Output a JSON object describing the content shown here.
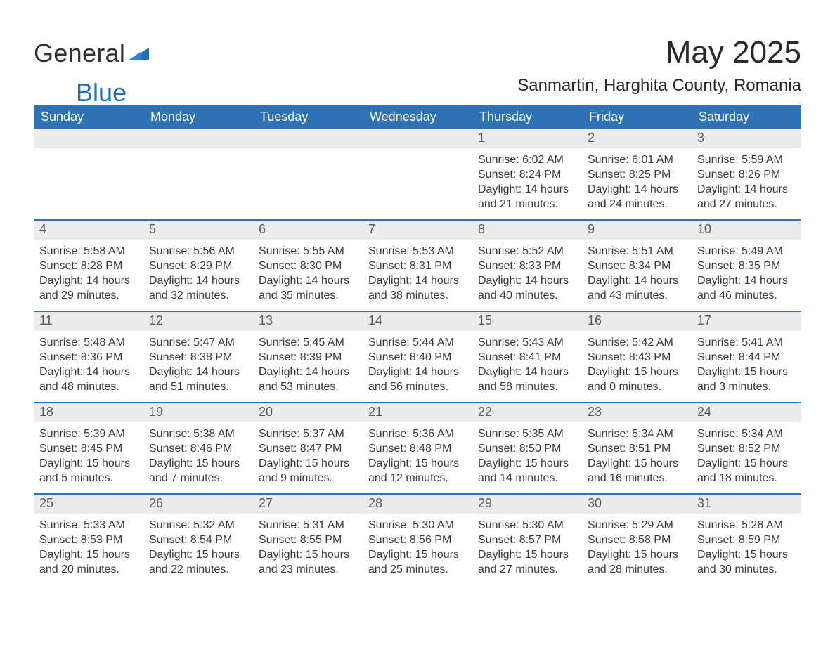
{
  "logo": {
    "word1": "General",
    "word2": "Blue",
    "accent_color": "#2470b8"
  },
  "title": "May 2025",
  "location": "Sanmartin, Harghita County, Romania",
  "colors": {
    "header_bg": "#2f73b5",
    "header_text": "#ffffff",
    "daynum_bg": "#ececec",
    "daynum_text": "#595959",
    "body_text": "#3a3a3a",
    "week_border": "#2f73b5",
    "page_bg": "#ffffff"
  },
  "typography": {
    "title_fontsize": 44,
    "location_fontsize": 24,
    "dayheader_fontsize": 18,
    "daynum_fontsize": 18,
    "detail_fontsize": 16,
    "font_family": "Arial"
  },
  "day_headers": [
    "Sunday",
    "Monday",
    "Tuesday",
    "Wednesday",
    "Thursday",
    "Friday",
    "Saturday"
  ],
  "weeks": [
    [
      {
        "blank": true
      },
      {
        "blank": true
      },
      {
        "blank": true
      },
      {
        "blank": true
      },
      {
        "num": "1",
        "sunrise": "Sunrise: 6:02 AM",
        "sunset": "Sunset: 8:24 PM",
        "daylight": "Daylight: 14 hours and 21 minutes."
      },
      {
        "num": "2",
        "sunrise": "Sunrise: 6:01 AM",
        "sunset": "Sunset: 8:25 PM",
        "daylight": "Daylight: 14 hours and 24 minutes."
      },
      {
        "num": "3",
        "sunrise": "Sunrise: 5:59 AM",
        "sunset": "Sunset: 8:26 PM",
        "daylight": "Daylight: 14 hours and 27 minutes."
      }
    ],
    [
      {
        "num": "4",
        "sunrise": "Sunrise: 5:58 AM",
        "sunset": "Sunset: 8:28 PM",
        "daylight": "Daylight: 14 hours and 29 minutes."
      },
      {
        "num": "5",
        "sunrise": "Sunrise: 5:56 AM",
        "sunset": "Sunset: 8:29 PM",
        "daylight": "Daylight: 14 hours and 32 minutes."
      },
      {
        "num": "6",
        "sunrise": "Sunrise: 5:55 AM",
        "sunset": "Sunset: 8:30 PM",
        "daylight": "Daylight: 14 hours and 35 minutes."
      },
      {
        "num": "7",
        "sunrise": "Sunrise: 5:53 AM",
        "sunset": "Sunset: 8:31 PM",
        "daylight": "Daylight: 14 hours and 38 minutes."
      },
      {
        "num": "8",
        "sunrise": "Sunrise: 5:52 AM",
        "sunset": "Sunset: 8:33 PM",
        "daylight": "Daylight: 14 hours and 40 minutes."
      },
      {
        "num": "9",
        "sunrise": "Sunrise: 5:51 AM",
        "sunset": "Sunset: 8:34 PM",
        "daylight": "Daylight: 14 hours and 43 minutes."
      },
      {
        "num": "10",
        "sunrise": "Sunrise: 5:49 AM",
        "sunset": "Sunset: 8:35 PM",
        "daylight": "Daylight: 14 hours and 46 minutes."
      }
    ],
    [
      {
        "num": "11",
        "sunrise": "Sunrise: 5:48 AM",
        "sunset": "Sunset: 8:36 PM",
        "daylight": "Daylight: 14 hours and 48 minutes."
      },
      {
        "num": "12",
        "sunrise": "Sunrise: 5:47 AM",
        "sunset": "Sunset: 8:38 PM",
        "daylight": "Daylight: 14 hours and 51 minutes."
      },
      {
        "num": "13",
        "sunrise": "Sunrise: 5:45 AM",
        "sunset": "Sunset: 8:39 PM",
        "daylight": "Daylight: 14 hours and 53 minutes."
      },
      {
        "num": "14",
        "sunrise": "Sunrise: 5:44 AM",
        "sunset": "Sunset: 8:40 PM",
        "daylight": "Daylight: 14 hours and 56 minutes."
      },
      {
        "num": "15",
        "sunrise": "Sunrise: 5:43 AM",
        "sunset": "Sunset: 8:41 PM",
        "daylight": "Daylight: 14 hours and 58 minutes."
      },
      {
        "num": "16",
        "sunrise": "Sunrise: 5:42 AM",
        "sunset": "Sunset: 8:43 PM",
        "daylight": "Daylight: 15 hours and 0 minutes."
      },
      {
        "num": "17",
        "sunrise": "Sunrise: 5:41 AM",
        "sunset": "Sunset: 8:44 PM",
        "daylight": "Daylight: 15 hours and 3 minutes."
      }
    ],
    [
      {
        "num": "18",
        "sunrise": "Sunrise: 5:39 AM",
        "sunset": "Sunset: 8:45 PM",
        "daylight": "Daylight: 15 hours and 5 minutes."
      },
      {
        "num": "19",
        "sunrise": "Sunrise: 5:38 AM",
        "sunset": "Sunset: 8:46 PM",
        "daylight": "Daylight: 15 hours and 7 minutes."
      },
      {
        "num": "20",
        "sunrise": "Sunrise: 5:37 AM",
        "sunset": "Sunset: 8:47 PM",
        "daylight": "Daylight: 15 hours and 9 minutes."
      },
      {
        "num": "21",
        "sunrise": "Sunrise: 5:36 AM",
        "sunset": "Sunset: 8:48 PM",
        "daylight": "Daylight: 15 hours and 12 minutes."
      },
      {
        "num": "22",
        "sunrise": "Sunrise: 5:35 AM",
        "sunset": "Sunset: 8:50 PM",
        "daylight": "Daylight: 15 hours and 14 minutes."
      },
      {
        "num": "23",
        "sunrise": "Sunrise: 5:34 AM",
        "sunset": "Sunset: 8:51 PM",
        "daylight": "Daylight: 15 hours and 16 minutes."
      },
      {
        "num": "24",
        "sunrise": "Sunrise: 5:34 AM",
        "sunset": "Sunset: 8:52 PM",
        "daylight": "Daylight: 15 hours and 18 minutes."
      }
    ],
    [
      {
        "num": "25",
        "sunrise": "Sunrise: 5:33 AM",
        "sunset": "Sunset: 8:53 PM",
        "daylight": "Daylight: 15 hours and 20 minutes."
      },
      {
        "num": "26",
        "sunrise": "Sunrise: 5:32 AM",
        "sunset": "Sunset: 8:54 PM",
        "daylight": "Daylight: 15 hours and 22 minutes."
      },
      {
        "num": "27",
        "sunrise": "Sunrise: 5:31 AM",
        "sunset": "Sunset: 8:55 PM",
        "daylight": "Daylight: 15 hours and 23 minutes."
      },
      {
        "num": "28",
        "sunrise": "Sunrise: 5:30 AM",
        "sunset": "Sunset: 8:56 PM",
        "daylight": "Daylight: 15 hours and 25 minutes."
      },
      {
        "num": "29",
        "sunrise": "Sunrise: 5:30 AM",
        "sunset": "Sunset: 8:57 PM",
        "daylight": "Daylight: 15 hours and 27 minutes."
      },
      {
        "num": "30",
        "sunrise": "Sunrise: 5:29 AM",
        "sunset": "Sunset: 8:58 PM",
        "daylight": "Daylight: 15 hours and 28 minutes."
      },
      {
        "num": "31",
        "sunrise": "Sunrise: 5:28 AM",
        "sunset": "Sunset: 8:59 PM",
        "daylight": "Daylight: 15 hours and 30 minutes."
      }
    ]
  ]
}
